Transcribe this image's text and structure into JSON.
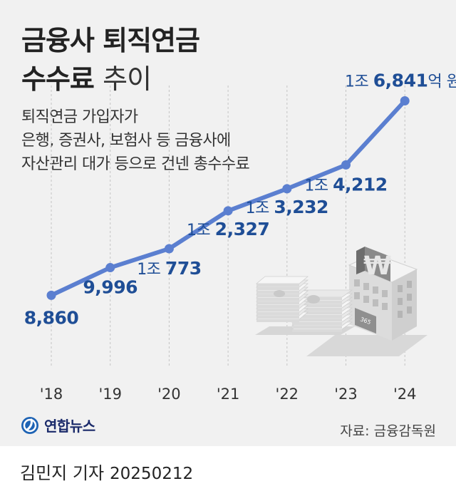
{
  "title": {
    "line1": "금융사 퇴직연금",
    "line2_bold": "수수료",
    "line2_light": "추이"
  },
  "description": [
    "퇴직연금 가입자가",
    "은행, 증권사, 보험사 등 금융사에",
    "자산관리 대가 등으로 건넨 총수수료"
  ],
  "chart_data": {
    "type": "line",
    "categories": [
      "'18",
      "'19",
      "'20",
      "'21",
      "'22",
      "'23",
      "'24"
    ],
    "values": [
      8860,
      9996,
      10773,
      12327,
      13232,
      14212,
      16841
    ],
    "labels": [
      {
        "pre": "",
        "num": "8,860",
        "unit": ""
      },
      {
        "pre": "",
        "num": "9,996",
        "unit": ""
      },
      {
        "pre": "1조",
        "num": "773",
        "unit": ""
      },
      {
        "pre": "1조",
        "num": "2,327",
        "unit": ""
      },
      {
        "pre": "1조",
        "num": "3,232",
        "unit": ""
      },
      {
        "pre": "1조",
        "num": "4,212",
        "unit": ""
      },
      {
        "pre": "1조",
        "num": "6,841",
        "unit": "억 원"
      }
    ],
    "ylim": [
      7000,
      18200
    ],
    "line_color": "#5b7fd0",
    "label_color": "#1f4e96"
  },
  "illustration": {
    "sign": "₩",
    "building_number": "365"
  },
  "logo": {
    "text": "연합뉴스"
  },
  "source": "자료: 금융감독원",
  "footer": {
    "author": "김민지 기자",
    "date": "20250212"
  }
}
